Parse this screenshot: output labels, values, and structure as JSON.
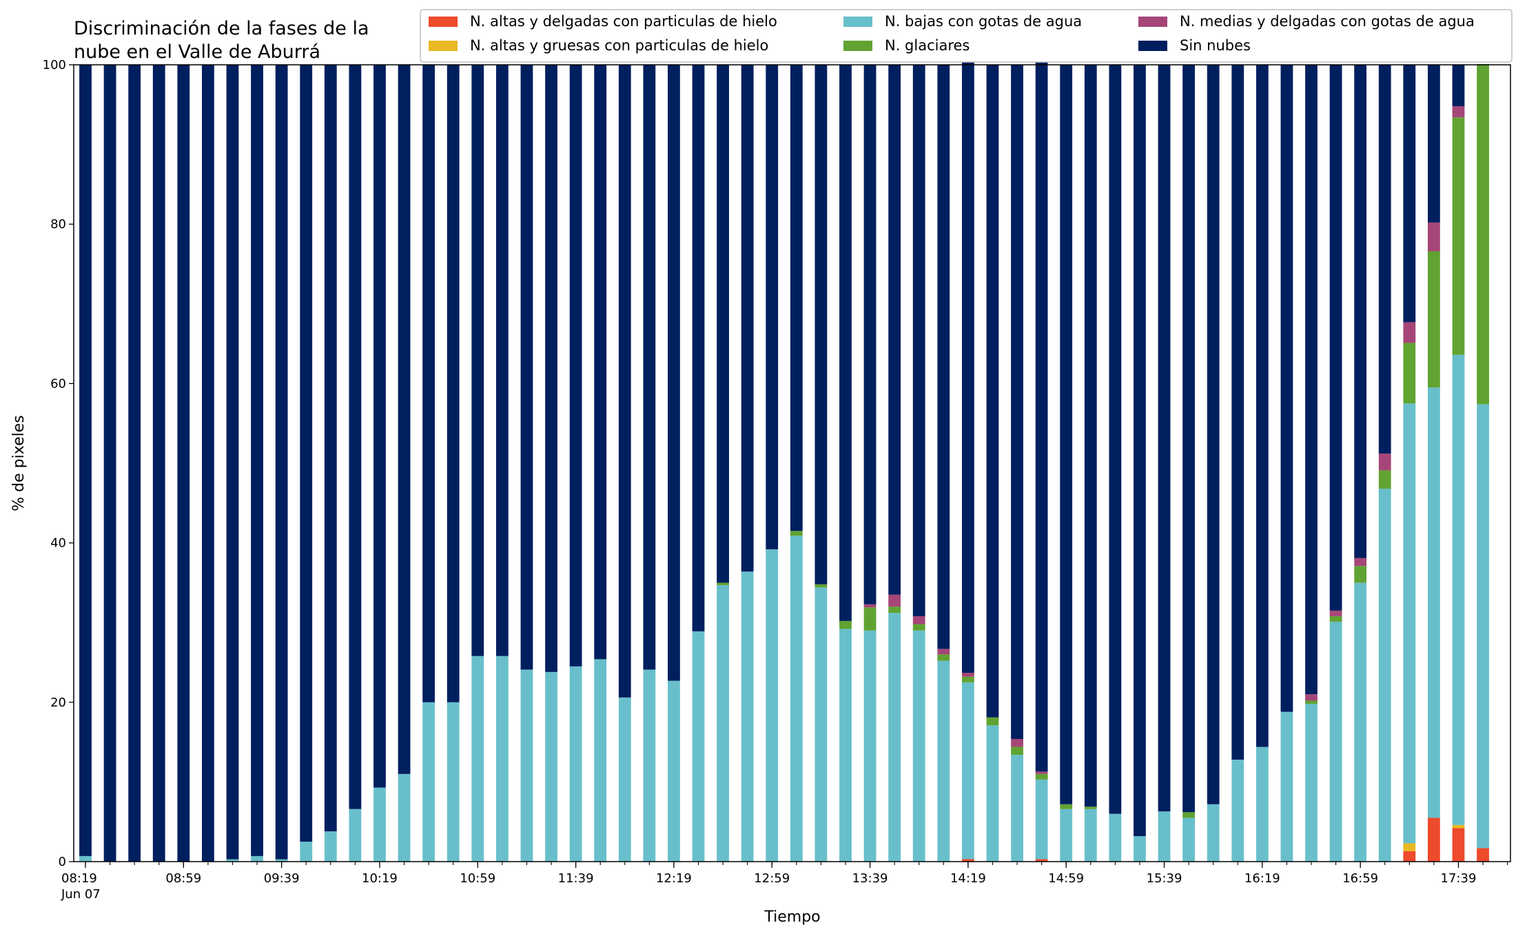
{
  "chart_data": {
    "type": "bar",
    "stacked": true,
    "title_lines": [
      "Discriminación de la fases de la",
      "nube en el Valle de Aburrá"
    ],
    "xlabel": "Tiempo",
    "ylabel": "% de pixeles",
    "ylim": [
      0,
      100
    ],
    "yticks": [
      0,
      20,
      40,
      60,
      80,
      100
    ],
    "grid": false,
    "legend_position": "top-right",
    "x_tick_labels": [
      {
        "index": 0,
        "label": "08:19",
        "sublabel": "Jun 07"
      },
      {
        "index": 4,
        "label": "08:59"
      },
      {
        "index": 8,
        "label": "09:39"
      },
      {
        "index": 12,
        "label": "10:19"
      },
      {
        "index": 16,
        "label": "10:59"
      },
      {
        "index": 20,
        "label": "11:39"
      },
      {
        "index": 24,
        "label": "12:19"
      },
      {
        "index": 28,
        "label": "12:59"
      },
      {
        "index": 32,
        "label": "13:39"
      },
      {
        "index": 36,
        "label": "14:19"
      },
      {
        "index": 40,
        "label": "14:59"
      },
      {
        "index": 44,
        "label": "15:39"
      },
      {
        "index": 48,
        "label": "16:19"
      },
      {
        "index": 52,
        "label": "16:59"
      },
      {
        "index": 56,
        "label": "17:39"
      }
    ],
    "series": [
      {
        "name": "N. altas y delgadas con particulas de hielo",
        "color": "#ee4a2c",
        "values": [
          0,
          0,
          0,
          0,
          0,
          0,
          0,
          0,
          0,
          0,
          0,
          0,
          0,
          0,
          0,
          0,
          0,
          0,
          0,
          0,
          0,
          0,
          0,
          0,
          0,
          0,
          0,
          0,
          0,
          0,
          0,
          0,
          0,
          0,
          0,
          0,
          0.3,
          0,
          0,
          0.3,
          0,
          0,
          0,
          0,
          0,
          0,
          0,
          0,
          0,
          0,
          0,
          0,
          0,
          0,
          1.3,
          5.5,
          4.2,
          1.7
        ]
      },
      {
        "name": "N. altas y gruesas con particulas de hielo",
        "color": "#e8b923",
        "values": [
          0,
          0,
          0,
          0,
          0,
          0,
          0,
          0,
          0,
          0,
          0,
          0,
          0,
          0,
          0,
          0,
          0,
          0,
          0,
          0,
          0,
          0,
          0,
          0,
          0,
          0,
          0,
          0,
          0,
          0,
          0,
          0,
          0,
          0,
          0,
          0,
          0,
          0,
          0,
          0,
          0,
          0,
          0,
          0,
          0,
          0,
          0,
          0,
          0,
          0,
          0,
          0,
          0,
          0,
          1.0,
          0,
          0.4,
          0
        ]
      },
      {
        "name": "N. bajas con gotas de agua",
        "color": "#68bfcb",
        "values": [
          0.7,
          0,
          0,
          0,
          0,
          0,
          0.3,
          0.7,
          0.3,
          2.5,
          3.8,
          6.6,
          9.3,
          11.0,
          20.0,
          20.0,
          25.8,
          25.8,
          24.1,
          23.8,
          24.5,
          25.4,
          20.6,
          24.1,
          22.7,
          28.9,
          34.7,
          36.4,
          39.2,
          40.9,
          34.4,
          29.2,
          29.0,
          31.2,
          29.0,
          25.2,
          22.2,
          17.1,
          13.4,
          10.0,
          6.6,
          6.6,
          6.0,
          3.2,
          6.3,
          5.5,
          7.2,
          12.8,
          14.4,
          18.8,
          19.8,
          30.1,
          35.0,
          46.8,
          55.2,
          54.0,
          59.0,
          55.7
        ]
      },
      {
        "name": "N. glaciares",
        "color": "#61a332",
        "values": [
          0,
          0,
          0,
          0,
          0,
          0,
          0,
          0,
          0,
          0,
          0,
          0,
          0,
          0,
          0,
          0,
          0,
          0,
          0,
          0,
          0,
          0,
          0,
          0,
          0,
          0,
          0.3,
          0,
          0,
          0.6,
          0.4,
          1.0,
          2.9,
          0.8,
          0.8,
          0.8,
          0.7,
          1.0,
          1.0,
          0.7,
          0.6,
          0.3,
          0,
          0,
          0,
          0.7,
          0,
          0,
          0,
          0,
          0.4,
          0.7,
          2.1,
          2.3,
          7.6,
          17.1,
          29.8,
          42.7
        ]
      },
      {
        "name": "N. medias y delgadas con gotas de agua",
        "color": "#a64678",
        "values": [
          0,
          0,
          0,
          0,
          0,
          0,
          0,
          0,
          0,
          0,
          0,
          0,
          0,
          0,
          0,
          0,
          0,
          0,
          0,
          0,
          0,
          0,
          0,
          0,
          0,
          0,
          0,
          0,
          0,
          0,
          0,
          0,
          0.4,
          1.5,
          1.0,
          0.7,
          0.5,
          0,
          1.0,
          0.3,
          0,
          0,
          0,
          0,
          0,
          0,
          0,
          0,
          0,
          0,
          0.8,
          0.7,
          1.0,
          2.1,
          2.6,
          3.6,
          1.4,
          0
        ]
      },
      {
        "name": "Sin nubes",
        "color": "#001f5f",
        "values": [
          99.3,
          100,
          100,
          100,
          100,
          100,
          99.7,
          99.3,
          99.7,
          97.5,
          96.2,
          93.4,
          90.7,
          89.0,
          80.0,
          80.0,
          74.2,
          74.2,
          75.9,
          76.2,
          75.5,
          74.6,
          79.4,
          75.9,
          77.3,
          71.1,
          65.0,
          63.6,
          60.8,
          58.5,
          65.2,
          69.8,
          67.7,
          66.5,
          69.2,
          73.3,
          76.6,
          81.9,
          84.6,
          89.0,
          92.8,
          93.1,
          94.0,
          96.8,
          93.7,
          93.8,
          92.8,
          87.2,
          85.6,
          81.2,
          79.0,
          68.5,
          61.9,
          48.8,
          32.3,
          19.8,
          5.2,
          0
        ]
      }
    ]
  }
}
